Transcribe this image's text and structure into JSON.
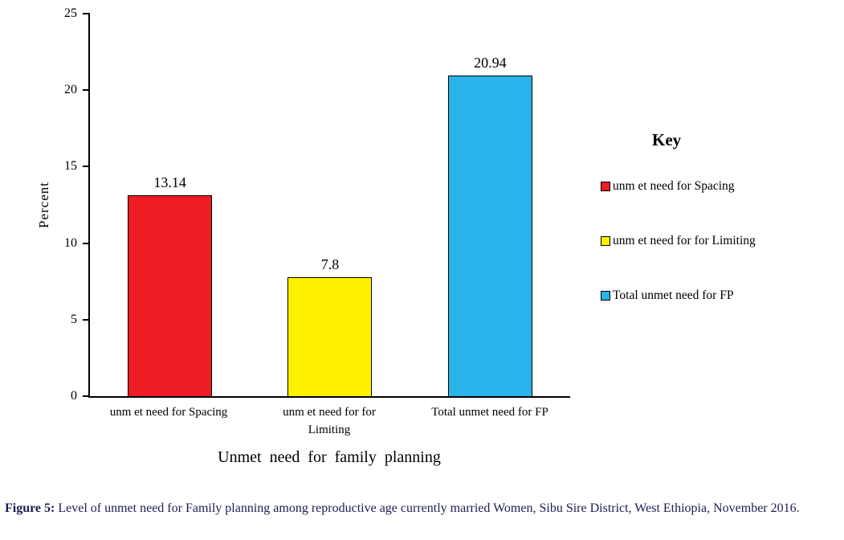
{
  "chart_data": {
    "type": "bar",
    "categories": [
      "unm et need for Spacing",
      "unm et need for for\nLimiting",
      "Total unmet need for FP"
    ],
    "values": [
      13.14,
      7.8,
      20.94
    ],
    "value_labels": [
      "13.14",
      "7.8",
      "20.94"
    ],
    "bar_colors": [
      "#ee1c23",
      "#fff200",
      "#29b3ea"
    ],
    "title": "",
    "xlabel": "Unmet  need  for family  planning",
    "ylabel": "Percent",
    "ylim": [
      0,
      25
    ],
    "yticks": [
      0,
      5,
      10,
      15,
      20,
      25
    ],
    "grid": false,
    "legend": {
      "title": "Key",
      "position": "right",
      "entries": [
        {
          "label": "unm et need for Spacing",
          "color": "#ee1c23"
        },
        {
          "label": "unm et need for for Limiting",
          "color": "#fff200"
        },
        {
          "label": "Total unmet need for FP",
          "color": "#29b3ea"
        }
      ]
    }
  },
  "caption": {
    "prefix": "Figure 5:",
    "text": " Level of unmet need for Family planning among reproductive age currently married Women, Sibu Sire District, West Ethiopia, November 2016."
  }
}
